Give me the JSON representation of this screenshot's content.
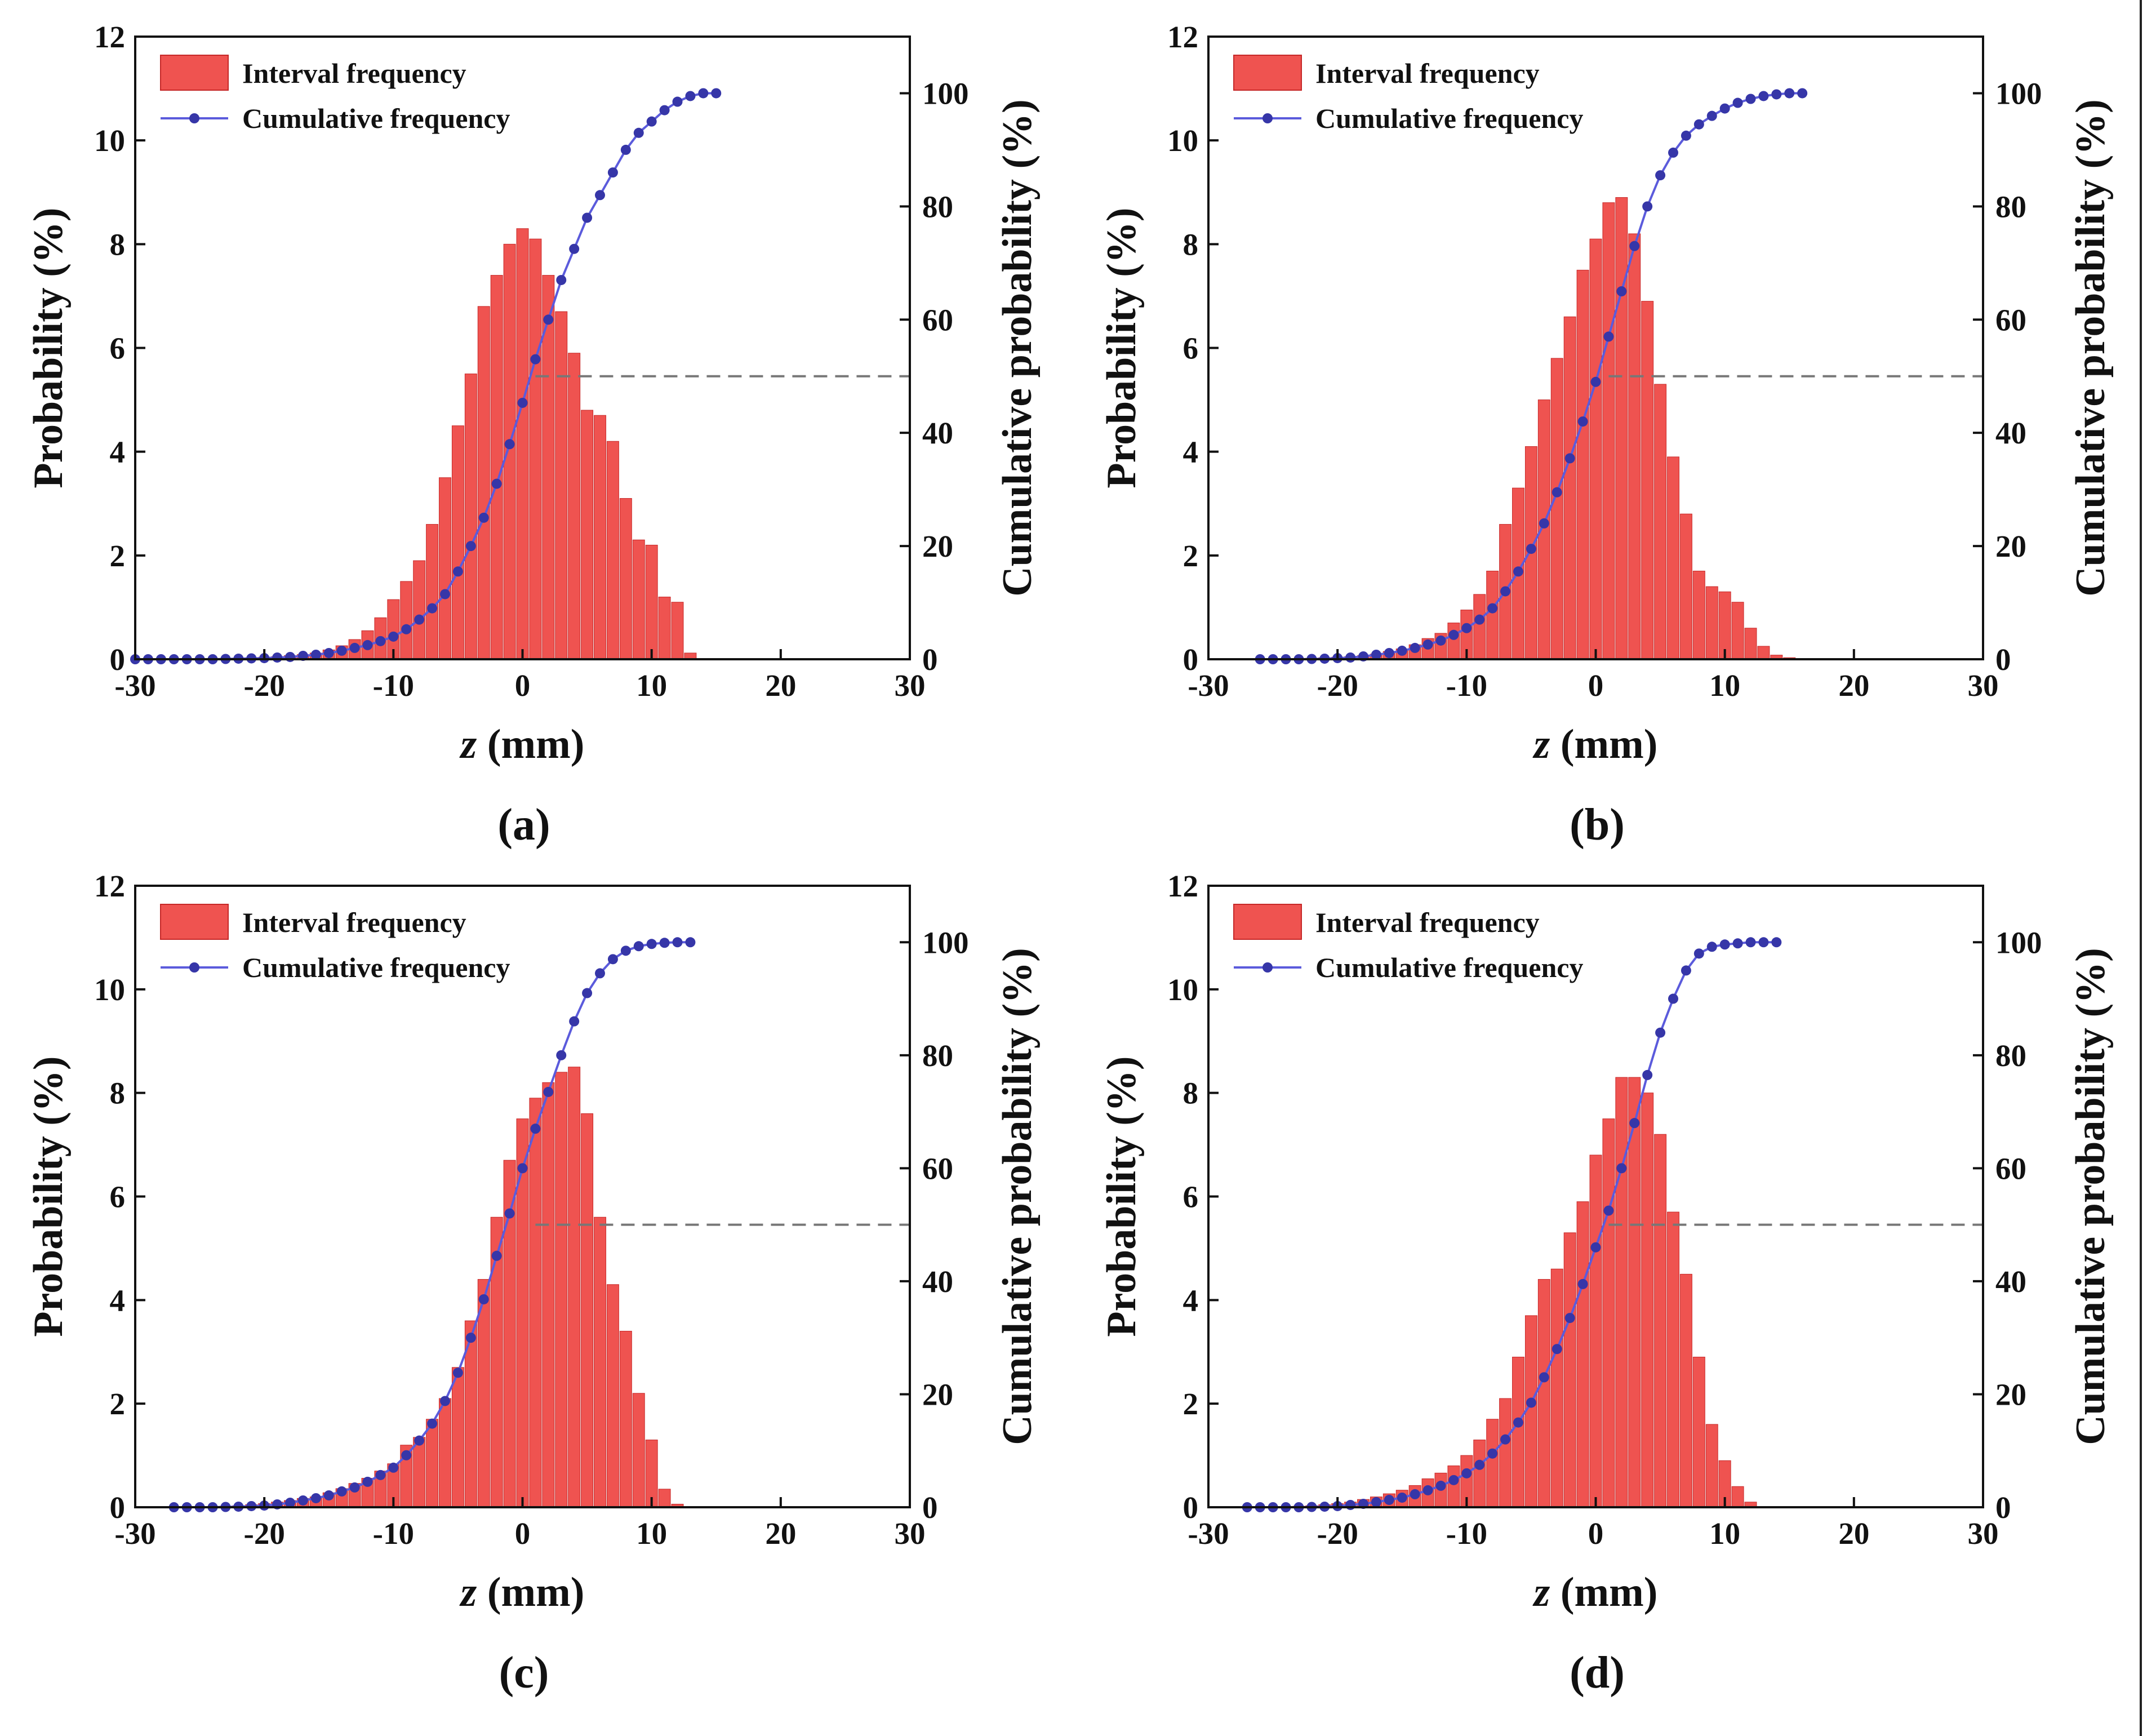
{
  "chart_data": [
    {
      "type": "bar",
      "panel_label": "(a)",
      "xlabel_var": "z",
      "xlabel_unit": " (mm)",
      "ylabel": "Probability (%)",
      "y2label": "Cumulative probability (%)",
      "xlim": [
        -30,
        30
      ],
      "ylim": [
        0,
        12
      ],
      "y2lim": [
        0,
        110
      ],
      "xticks": [
        "-30",
        "-20",
        "-10",
        "0",
        "10",
        "20",
        "30"
      ],
      "yticks": [
        "0",
        "2",
        "4",
        "6",
        "8",
        "10",
        "12"
      ],
      "y2ticks": [
        "0",
        "20",
        "40",
        "60",
        "80",
        "100"
      ],
      "legend": [
        "Interval frequency",
        "Cumulative frequency"
      ],
      "legend_position": "top-left",
      "reference_line": {
        "y2": 50,
        "from_x": 1,
        "style": "dashed"
      },
      "bar_width": 1,
      "bars": {
        "x": [
          -29,
          -28,
          -27,
          -26,
          -25,
          -24,
          -23,
          -22,
          -21,
          -20,
          -19,
          -18,
          -17,
          -16,
          -15,
          -14,
          -13,
          -12,
          -11,
          -10,
          -9,
          -8,
          -7,
          -6,
          -5,
          -4,
          -3,
          -2,
          -1,
          0,
          1,
          2,
          3,
          4,
          5,
          6,
          7,
          8,
          9,
          10,
          11,
          12,
          13
        ],
        "values": [
          0,
          0,
          0,
          0,
          0,
          0.01,
          0.01,
          0.02,
          0.03,
          0.04,
          0.05,
          0.07,
          0.09,
          0.12,
          0.18,
          0.26,
          0.38,
          0.55,
          0.8,
          1.15,
          1.5,
          1.9,
          2.6,
          3.5,
          4.5,
          5.5,
          6.8,
          7.4,
          8.0,
          8.3,
          8.1,
          7.4,
          6.7,
          5.9,
          4.8,
          4.7,
          4.2,
          3.1,
          2.3,
          2.2,
          1.2,
          1.1,
          0.12
        ]
      },
      "series": [
        {
          "name": "Cumulative frequency",
          "x": [
            -30,
            -29,
            -28,
            -27,
            -26,
            -25,
            -24,
            -23,
            -22,
            -21,
            -20,
            -19,
            -18,
            -17,
            -16,
            -15,
            -14,
            -13,
            -12,
            -11,
            -10,
            -9,
            -8,
            -7,
            -6,
            -5,
            -4,
            -3,
            -2,
            -1,
            0,
            1,
            2,
            3,
            4,
            5,
            6,
            7,
            8,
            9,
            10,
            11,
            12,
            13,
            14,
            15
          ],
          "values": [
            0,
            0,
            0,
            0,
            0,
            0,
            0,
            0.05,
            0.1,
            0.15,
            0.2,
            0.3,
            0.4,
            0.6,
            0.8,
            1.1,
            1.5,
            2,
            2.5,
            3.2,
            4,
            5.3,
            7,
            9,
            11.5,
            15.5,
            20,
            25,
            31,
            38,
            45.3,
            53,
            60,
            67,
            72.5,
            78,
            82,
            86,
            90,
            93,
            95,
            97,
            98.5,
            99.5,
            100,
            100
          ]
        }
      ]
    },
    {
      "type": "bar",
      "panel_label": "(b)",
      "xlabel_var": "z",
      "xlabel_unit": " (mm)",
      "ylabel": "Probability (%)",
      "y2label": "Cumulative probability (%)",
      "xlim": [
        -30,
        30
      ],
      "ylim": [
        0,
        12
      ],
      "y2lim": [
        0,
        110
      ],
      "xticks": [
        "-30",
        "-20",
        "-10",
        "0",
        "10",
        "20",
        "30"
      ],
      "yticks": [
        "0",
        "2",
        "4",
        "6",
        "8",
        "10",
        "12"
      ],
      "y2ticks": [
        "0",
        "20",
        "40",
        "60",
        "80",
        "100"
      ],
      "legend": [
        "Interval frequency",
        "Cumulative frequency"
      ],
      "legend_position": "top-left",
      "reference_line": {
        "y2": 50,
        "from_x": 1,
        "style": "dashed"
      },
      "bar_width": 1,
      "bars": {
        "x": [
          -25,
          -24,
          -23,
          -22,
          -21,
          -20,
          -19,
          -18,
          -17,
          -16,
          -15,
          -14,
          -13,
          -12,
          -11,
          -10,
          -9,
          -8,
          -7,
          -6,
          -5,
          -4,
          -3,
          -2,
          -1,
          0,
          1,
          2,
          3,
          4,
          5,
          6,
          7,
          8,
          9,
          10,
          11,
          12,
          13,
          14,
          15
        ],
        "values": [
          0,
          0,
          0.01,
          0.02,
          0.03,
          0.04,
          0.05,
          0.07,
          0.1,
          0.15,
          0.2,
          0.28,
          0.4,
          0.5,
          0.7,
          0.95,
          1.25,
          1.7,
          2.6,
          3.3,
          4.1,
          5.0,
          5.8,
          6.6,
          7.5,
          8.1,
          8.8,
          8.9,
          8.2,
          6.9,
          5.3,
          3.9,
          2.8,
          1.7,
          1.4,
          1.3,
          1.1,
          0.6,
          0.25,
          0.08,
          0.03
        ]
      },
      "series": [
        {
          "name": "Cumulative frequency",
          "x": [
            -26,
            -25,
            -24,
            -23,
            -22,
            -21,
            -20,
            -19,
            -18,
            -17,
            -16,
            -15,
            -14,
            -13,
            -12,
            -11,
            -10,
            -9,
            -8,
            -7,
            -6,
            -5,
            -4,
            -3,
            -2,
            -1,
            0,
            1,
            2,
            3,
            4,
            5,
            6,
            7,
            8,
            9,
            10,
            11,
            12,
            13,
            14,
            15,
            16
          ],
          "values": [
            0,
            0,
            0,
            0,
            0.05,
            0.1,
            0.2,
            0.3,
            0.5,
            0.8,
            1.1,
            1.5,
            2,
            2.6,
            3.3,
            4.3,
            5.5,
            7,
            9,
            12,
            15.5,
            19.5,
            24,
            29.5,
            35.5,
            42,
            49,
            57,
            65,
            73,
            80,
            85.5,
            89.5,
            92.5,
            94.5,
            96,
            97.3,
            98.3,
            99,
            99.5,
            99.8,
            100,
            100
          ]
        }
      ]
    },
    {
      "type": "bar",
      "panel_label": "(c)",
      "xlabel_var": "z",
      "xlabel_unit": " (mm)",
      "ylabel": "Probability (%)",
      "y2label": "Cumulative probability (%)",
      "xlim": [
        -30,
        30
      ],
      "ylim": [
        0,
        12
      ],
      "y2lim": [
        0,
        110
      ],
      "xticks": [
        "-30",
        "-20",
        "-10",
        "0",
        "10",
        "20",
        "30"
      ],
      "yticks": [
        "0",
        "2",
        "4",
        "6",
        "8",
        "10",
        "12"
      ],
      "y2ticks": [
        "0",
        "20",
        "40",
        "60",
        "80",
        "100"
      ],
      "legend": [
        "Interval frequency",
        "Cumulative frequency"
      ],
      "legend_position": "top-left",
      "reference_line": {
        "y2": 50,
        "from_x": 1,
        "style": "dashed"
      },
      "bar_width": 1,
      "bars": {
        "x": [
          -26,
          -25,
          -24,
          -23,
          -22,
          -21,
          -20,
          -19,
          -18,
          -17,
          -16,
          -15,
          -14,
          -13,
          -12,
          -11,
          -10,
          -9,
          -8,
          -7,
          -6,
          -5,
          -4,
          -3,
          -2,
          -1,
          0,
          1,
          2,
          3,
          4,
          5,
          6,
          7,
          8,
          9,
          10,
          11,
          12
        ],
        "values": [
          0,
          0,
          0.01,
          0.02,
          0.03,
          0.05,
          0.07,
          0.1,
          0.13,
          0.17,
          0.2,
          0.28,
          0.36,
          0.46,
          0.56,
          0.7,
          0.84,
          1.2,
          1.35,
          1.7,
          2.1,
          2.7,
          3.6,
          4.4,
          5.6,
          6.7,
          7.5,
          7.9,
          8.2,
          8.4,
          8.5,
          7.6,
          5.6,
          4.3,
          3.4,
          2.2,
          1.3,
          0.35,
          0.06
        ]
      },
      "series": [
        {
          "name": "Cumulative frequency",
          "x": [
            -27,
            -26,
            -25,
            -24,
            -23,
            -22,
            -21,
            -20,
            -19,
            -18,
            -17,
            -16,
            -15,
            -14,
            -13,
            -12,
            -11,
            -10,
            -9,
            -8,
            -7,
            -6,
            -5,
            -4,
            -3,
            -2,
            -1,
            0,
            1,
            2,
            3,
            4,
            5,
            6,
            7,
            8,
            9,
            10,
            11,
            12,
            13
          ],
          "values": [
            0,
            0,
            0,
            0,
            0.05,
            0.1,
            0.2,
            0.3,
            0.5,
            0.8,
            1.2,
            1.6,
            2.1,
            2.8,
            3.5,
            4.5,
            5.7,
            7,
            9.2,
            11.8,
            14.8,
            18.8,
            23.8,
            30,
            36.8,
            44.5,
            52,
            60,
            67,
            73.5,
            80,
            86,
            91,
            94.5,
            97,
            98.5,
            99.3,
            99.7,
            99.9,
            100,
            100
          ]
        }
      ]
    },
    {
      "type": "bar",
      "panel_label": "(d)",
      "xlabel_var": "z",
      "xlabel_unit": " (mm)",
      "ylabel": "Probability (%)",
      "y2label": "Cumulative probability (%)",
      "xlim": [
        -30,
        30
      ],
      "ylim": [
        0,
        12
      ],
      "y2lim": [
        0,
        110
      ],
      "xticks": [
        "-30",
        "-20",
        "-10",
        "0",
        "10",
        "20",
        "30"
      ],
      "yticks": [
        "0",
        "2",
        "4",
        "6",
        "8",
        "10",
        "12"
      ],
      "y2ticks": [
        "0",
        "20",
        "40",
        "60",
        "80",
        "100"
      ],
      "legend": [
        "Interval frequency",
        "Cumulative frequency"
      ],
      "legend_position": "top-left",
      "reference_line": {
        "y2": 50,
        "from_x": 1,
        "style": "dashed"
      },
      "bar_width": 1,
      "bars": {
        "x": [
          -26,
          -25,
          -24,
          -23,
          -22,
          -21,
          -20,
          -19,
          -18,
          -17,
          -16,
          -15,
          -14,
          -13,
          -12,
          -11,
          -10,
          -9,
          -8,
          -7,
          -6,
          -5,
          -4,
          -3,
          -2,
          -1,
          0,
          1,
          2,
          3,
          4,
          5,
          6,
          7,
          8,
          9,
          10,
          11,
          12
        ],
        "values": [
          0,
          0,
          0.01,
          0.02,
          0.03,
          0.05,
          0.07,
          0.1,
          0.15,
          0.2,
          0.26,
          0.33,
          0.42,
          0.55,
          0.66,
          0.8,
          1.0,
          1.3,
          1.7,
          2.1,
          2.9,
          3.7,
          4.4,
          4.6,
          5.3,
          5.9,
          6.8,
          7.5,
          8.3,
          8.3,
          8.0,
          7.2,
          5.7,
          4.5,
          2.9,
          1.6,
          0.9,
          0.4,
          0.1
        ]
      },
      "series": [
        {
          "name": "Cumulative frequency",
          "x": [
            -27,
            -26,
            -25,
            -24,
            -23,
            -22,
            -21,
            -20,
            -19,
            -18,
            -17,
            -16,
            -15,
            -14,
            -13,
            -12,
            -11,
            -10,
            -9,
            -8,
            -7,
            -6,
            -5,
            -4,
            -3,
            -2,
            -1,
            0,
            1,
            2,
            3,
            4,
            5,
            6,
            7,
            8,
            9,
            10,
            11,
            12,
            13,
            14
          ],
          "values": [
            0,
            0,
            0,
            0,
            0,
            0.05,
            0.1,
            0.2,
            0.4,
            0.6,
            0.9,
            1.3,
            1.7,
            2.3,
            3,
            3.8,
            4.8,
            6,
            7.5,
            9.5,
            12,
            15,
            18.5,
            23,
            28,
            33.5,
            39.5,
            46,
            52.5,
            60,
            68,
            76.5,
            84,
            90,
            95,
            98,
            99.2,
            99.6,
            99.8,
            100,
            100,
            100
          ]
        }
      ]
    }
  ],
  "colors": {
    "bar_fill": "#ef5350",
    "bar_stroke": "#c62828",
    "line": "#5b5bdc",
    "marker": "#3636a8",
    "reference": "#777777",
    "text": "#111111"
  }
}
